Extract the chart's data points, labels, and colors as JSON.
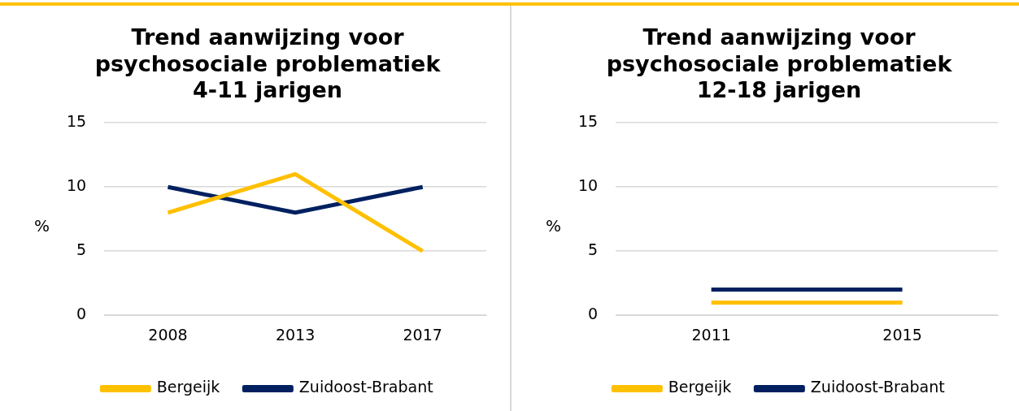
{
  "chart_data": [
    {
      "type": "line",
      "title": "Trend aanwijzing voor psychosociale problematiek 4-11 jarigen",
      "ylabel": "%",
      "categories": [
        "2008",
        "2013",
        "2017"
      ],
      "series": [
        {
          "name": "Bergeijk",
          "color": "#ffc000",
          "values": [
            8,
            11,
            5
          ]
        },
        {
          "name": "Zuidoost-Brabant",
          "color": "#002060",
          "values": [
            10,
            8,
            10
          ]
        }
      ],
      "ylim": [
        0,
        15
      ],
      "yticks": [
        0,
        5,
        10,
        15
      ],
      "grid": "y",
      "legend": "bottom",
      "marker": "none",
      "line_style": "solid"
    },
    {
      "type": "line",
      "title": "Trend aanwijzing voor psychosociale problematiek 12-18 jarigen",
      "ylabel": "%",
      "categories": [
        "2011",
        "2015"
      ],
      "series": [
        {
          "name": "Bergeijk",
          "color": "#ffc000",
          "values": [
            1,
            1
          ]
        },
        {
          "name": "Zuidoost-Brabant",
          "color": "#002060",
          "values": [
            2,
            2
          ]
        }
      ],
      "ylim": [
        0,
        15
      ],
      "yticks": [
        0,
        5,
        10,
        15
      ],
      "grid": "y",
      "legend": "bottom",
      "marker": "none",
      "line_style": "solid"
    }
  ]
}
